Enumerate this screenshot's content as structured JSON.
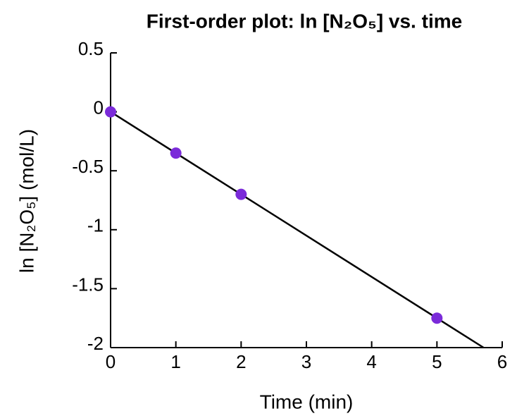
{
  "chart_data": {
    "type": "scatter",
    "title": "First-order plot: ln [N₂O₅] vs. time",
    "xlabel": "Time (min)",
    "ylabel": "ln [N₂O₅] (mol/L)",
    "x": [
      0,
      1,
      2,
      5
    ],
    "values": [
      0,
      -0.35,
      -0.7,
      -1.75
    ],
    "color": "#7b2bd9",
    "trendline": {
      "slope": -0.35,
      "intercept": 0,
      "color": "#000000"
    },
    "xlim": [
      0,
      6
    ],
    "xticks": [
      0,
      1,
      2,
      3,
      4,
      5,
      6
    ],
    "ylim": [
      -2,
      0.5
    ],
    "yticks": [
      -2,
      -1.5,
      -1,
      -0.5,
      0,
      0.5
    ],
    "grid": false
  }
}
